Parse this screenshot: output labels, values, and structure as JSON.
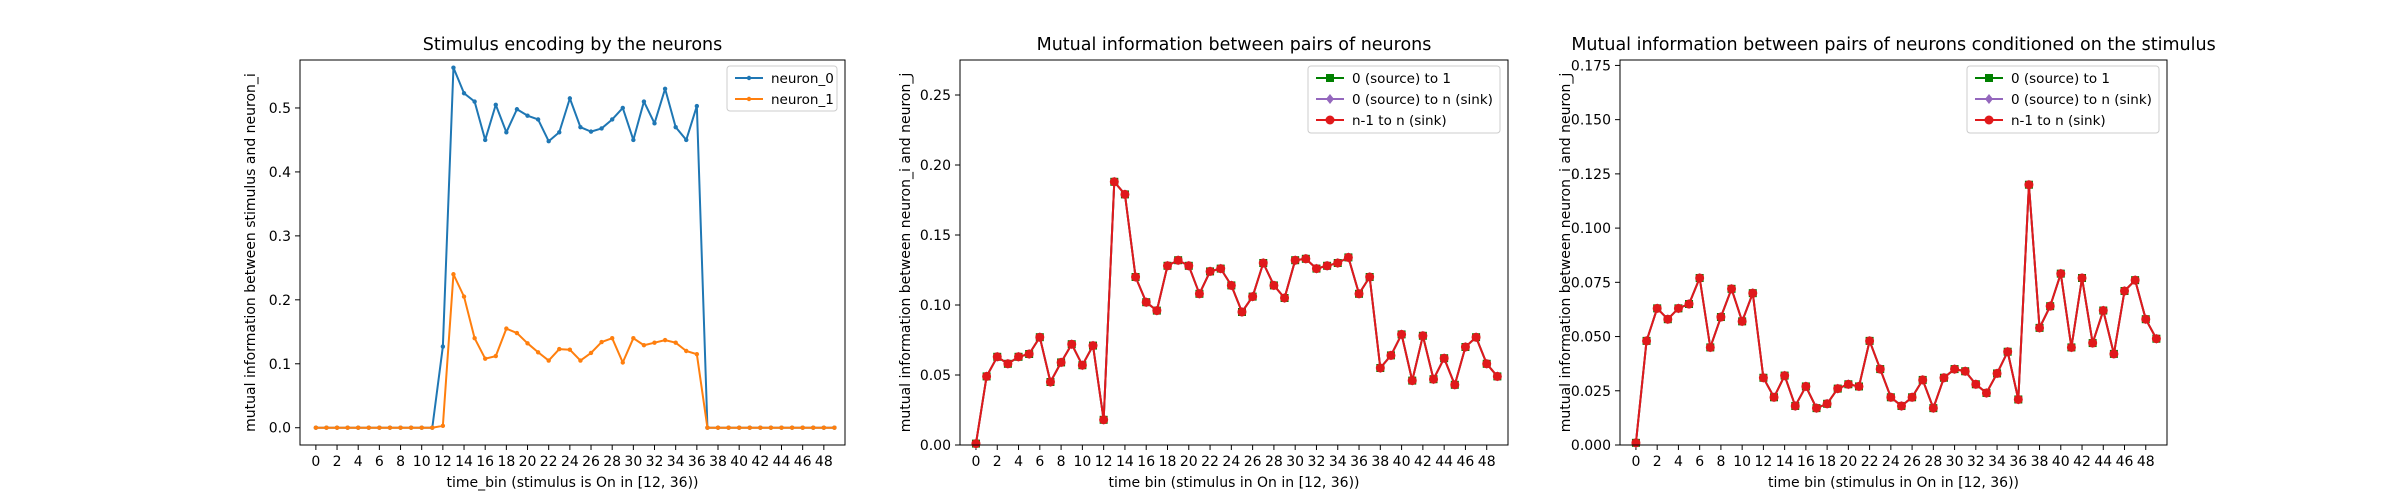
{
  "chart_data": [
    {
      "type": "line",
      "title": "Stimulus encoding by the neurons",
      "xlabel": "time_bin (stimulus is On in [12, 36))",
      "ylabel": "mutual information between stimulus and neuron_i",
      "xlim": [
        -1.5,
        50
      ],
      "ylim": [
        -0.027,
        0.575
      ],
      "xticks": [
        0,
        2,
        4,
        6,
        8,
        10,
        12,
        14,
        16,
        18,
        20,
        22,
        24,
        26,
        28,
        30,
        32,
        34,
        36,
        38,
        40,
        42,
        44,
        46,
        48
      ],
      "yticks": [
        0.0,
        0.1,
        0.2,
        0.3,
        0.4,
        0.5
      ],
      "ytick_labels": [
        "0.0",
        "0.1",
        "0.2",
        "0.3",
        "0.4",
        "0.5"
      ],
      "legend": "top-right",
      "series": [
        {
          "name": "neuron_0",
          "color": "#1f77b4",
          "marker": "point",
          "values": [
            0,
            0,
            0,
            0,
            0,
            0,
            0,
            0,
            0,
            0,
            0,
            0,
            0.127,
            0.563,
            0.523,
            0.51,
            0.45,
            0.505,
            0.462,
            0.498,
            0.488,
            0.482,
            0.448,
            0.462,
            0.515,
            0.47,
            0.463,
            0.468,
            0.482,
            0.5,
            0.45,
            0.51,
            0.476,
            0.53,
            0.47,
            0.45,
            0.503,
            0,
            0,
            0,
            0,
            0,
            0,
            0,
            0,
            0,
            0,
            0,
            0,
            0
          ]
        },
        {
          "name": "neuron_1",
          "color": "#ff7f0e",
          "marker": "point",
          "values": [
            0,
            0,
            0,
            0,
            0,
            0,
            0,
            0,
            0,
            0,
            0,
            0,
            0.003,
            0.24,
            0.205,
            0.14,
            0.108,
            0.112,
            0.155,
            0.148,
            0.132,
            0.118,
            0.105,
            0.123,
            0.122,
            0.105,
            0.117,
            0.134,
            0.14,
            0.102,
            0.14,
            0.129,
            0.133,
            0.137,
            0.133,
            0.12,
            0.115,
            0,
            0,
            0,
            0,
            0,
            0,
            0,
            0,
            0,
            0,
            0,
            0,
            0
          ]
        }
      ]
    },
    {
      "type": "line",
      "title": "Mutual information between pairs of neurons",
      "xlabel": "time bin (stimulus in On in [12, 36))",
      "ylabel": "mutual information between neuron_i and neuron_j",
      "xlim": [
        -1.5,
        50
      ],
      "ylim": [
        0,
        0.275
      ],
      "xticks": [
        0,
        2,
        4,
        6,
        8,
        10,
        12,
        14,
        16,
        18,
        20,
        22,
        24,
        26,
        28,
        30,
        32,
        34,
        36,
        38,
        40,
        42,
        44,
        46,
        48
      ],
      "yticks": [
        0.0,
        0.05,
        0.1,
        0.15,
        0.2,
        0.25
      ],
      "ytick_labels": [
        "0.00",
        "0.05",
        "0.10",
        "0.15",
        "0.20",
        "0.25"
      ],
      "legend": "top-right",
      "series": [
        {
          "name": "0 (source) to 1",
          "color": "#008000",
          "marker": "square",
          "values": [
            0.001,
            0.049,
            0.063,
            0.058,
            0.063,
            0.065,
            0.077,
            0.045,
            0.059,
            0.072,
            0.057,
            0.071,
            0.018,
            0.188,
            0.179,
            0.12,
            0.102,
            0.096,
            0.128,
            0.132,
            0.128,
            0.108,
            0.124,
            0.126,
            0.114,
            0.095,
            0.106,
            0.13,
            0.114,
            0.105,
            0.132,
            0.133,
            0.126,
            0.128,
            0.13,
            0.134,
            0.108,
            0.12,
            0.055,
            0.064,
            0.079,
            0.046,
            0.078,
            0.047,
            0.062,
            0.043,
            0.07,
            0.077,
            0.058,
            0.049
          ]
        },
        {
          "name": "0 (source) to n (sink)",
          "color": "#9467bd",
          "marker": "diamond",
          "values": [
            0.001,
            0.049,
            0.063,
            0.058,
            0.063,
            0.065,
            0.077,
            0.045,
            0.059,
            0.072,
            0.057,
            0.071,
            0.018,
            0.188,
            0.179,
            0.12,
            0.102,
            0.096,
            0.128,
            0.132,
            0.128,
            0.108,
            0.124,
            0.126,
            0.114,
            0.095,
            0.106,
            0.13,
            0.114,
            0.105,
            0.132,
            0.133,
            0.126,
            0.128,
            0.13,
            0.134,
            0.108,
            0.12,
            0.055,
            0.064,
            0.079,
            0.046,
            0.078,
            0.047,
            0.062,
            0.043,
            0.07,
            0.077,
            0.058,
            0.049
          ]
        },
        {
          "name": "n-1 to n (sink)",
          "color": "#e0191b",
          "marker": "circle",
          "values": [
            0.001,
            0.049,
            0.063,
            0.058,
            0.063,
            0.065,
            0.077,
            0.045,
            0.059,
            0.072,
            0.057,
            0.071,
            0.018,
            0.188,
            0.179,
            0.12,
            0.102,
            0.096,
            0.128,
            0.132,
            0.128,
            0.108,
            0.124,
            0.126,
            0.114,
            0.095,
            0.106,
            0.13,
            0.114,
            0.105,
            0.132,
            0.133,
            0.126,
            0.128,
            0.13,
            0.134,
            0.108,
            0.12,
            0.055,
            0.064,
            0.079,
            0.046,
            0.078,
            0.047,
            0.062,
            0.043,
            0.07,
            0.077,
            0.058,
            0.049
          ]
        }
      ]
    },
    {
      "type": "line",
      "title": "Mutual information between pairs of neurons conditioned on the stimulus",
      "xlabel": "time bin (stimulus in On in [12, 36))",
      "ylabel": "mutual information between neuron_i and neuron_j",
      "xlim": [
        -1.5,
        50
      ],
      "ylim": [
        0,
        0.1775
      ],
      "xticks": [
        0,
        2,
        4,
        6,
        8,
        10,
        12,
        14,
        16,
        18,
        20,
        22,
        24,
        26,
        28,
        30,
        32,
        34,
        36,
        38,
        40,
        42,
        44,
        46,
        48
      ],
      "yticks": [
        0.0,
        0.025,
        0.05,
        0.075,
        0.1,
        0.125,
        0.15,
        0.175
      ],
      "ytick_labels": [
        "0.000",
        "0.025",
        "0.050",
        "0.075",
        "0.100",
        "0.125",
        "0.150",
        "0.175"
      ],
      "legend": "top-right",
      "series": [
        {
          "name": "0 (source) to 1",
          "color": "#008000",
          "marker": "square",
          "values": [
            0.001,
            0.048,
            0.063,
            0.058,
            0.063,
            0.065,
            0.077,
            0.045,
            0.059,
            0.072,
            0.057,
            0.07,
            0.031,
            0.022,
            0.032,
            0.018,
            0.027,
            0.017,
            0.019,
            0.026,
            0.028,
            0.027,
            0.048,
            0.035,
            0.022,
            0.018,
            0.022,
            0.03,
            0.017,
            0.031,
            0.035,
            0.034,
            0.028,
            0.024,
            0.033,
            0.043,
            0.021,
            0.12,
            0.054,
            0.064,
            0.079,
            0.045,
            0.077,
            0.047,
            0.062,
            0.042,
            0.071,
            0.076,
            0.058,
            0.049
          ]
        },
        {
          "name": "0 (source) to n (sink)",
          "color": "#9467bd",
          "marker": "diamond",
          "values": [
            0.001,
            0.048,
            0.063,
            0.058,
            0.063,
            0.065,
            0.077,
            0.045,
            0.059,
            0.072,
            0.057,
            0.07,
            0.031,
            0.022,
            0.032,
            0.018,
            0.027,
            0.017,
            0.019,
            0.026,
            0.028,
            0.027,
            0.048,
            0.035,
            0.022,
            0.018,
            0.022,
            0.03,
            0.017,
            0.031,
            0.035,
            0.034,
            0.028,
            0.024,
            0.033,
            0.043,
            0.021,
            0.12,
            0.054,
            0.064,
            0.079,
            0.045,
            0.077,
            0.047,
            0.062,
            0.042,
            0.071,
            0.076,
            0.058,
            0.049
          ]
        },
        {
          "name": "n-1 to n (sink)",
          "color": "#e0191b",
          "marker": "circle",
          "values": [
            0.001,
            0.048,
            0.063,
            0.058,
            0.063,
            0.065,
            0.077,
            0.045,
            0.059,
            0.072,
            0.057,
            0.07,
            0.031,
            0.022,
            0.032,
            0.018,
            0.027,
            0.017,
            0.019,
            0.026,
            0.028,
            0.027,
            0.048,
            0.035,
            0.022,
            0.018,
            0.022,
            0.03,
            0.017,
            0.031,
            0.035,
            0.034,
            0.028,
            0.024,
            0.033,
            0.043,
            0.021,
            0.12,
            0.054,
            0.064,
            0.079,
            0.045,
            0.077,
            0.047,
            0.062,
            0.042,
            0.071,
            0.076,
            0.058,
            0.049
          ]
        }
      ]
    }
  ]
}
